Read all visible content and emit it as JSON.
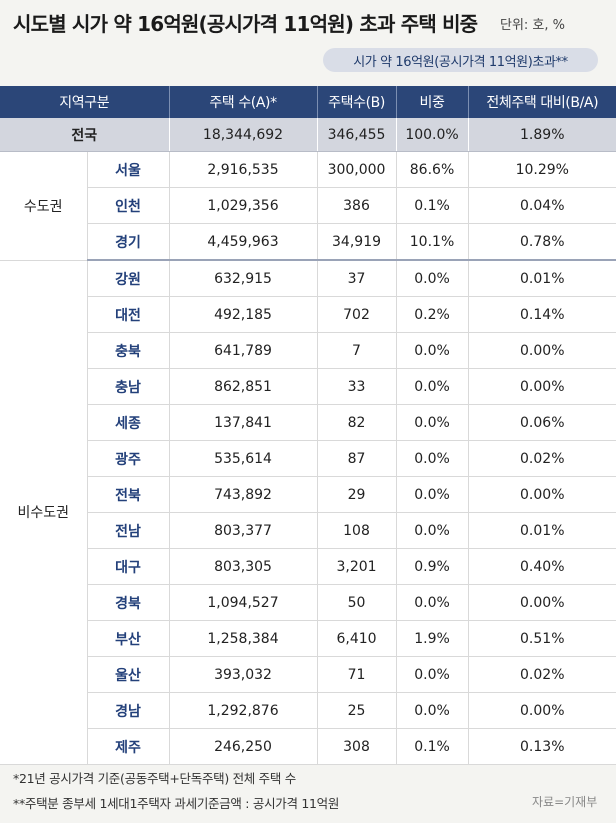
{
  "title": "시도별 시가 약 16억원(공시가격 11억원) 초과 주택 비중",
  "unit": "단위: 호, %",
  "badge": "시가 약 16억원(공시가격 11억원)초과**",
  "columns": [
    "지역구분",
    "주택 수(A)*",
    "주택수(B)",
    "비중",
    "전체주택 대비(B/A)"
  ],
  "national": {
    "name": "전국",
    "a": "18,344,692",
    "b": "346,455",
    "share": "100.0%",
    "ratio": "1.89%"
  },
  "groups": [
    {
      "name": "수도권",
      "rows": [
        {
          "region": "서울",
          "a": "2,916,535",
          "b": "300,000",
          "share": "86.6%",
          "ratio": "10.29%"
        },
        {
          "region": "인천",
          "a": "1,029,356",
          "b": "386",
          "share": "0.1%",
          "ratio": "0.04%"
        },
        {
          "region": "경기",
          "a": "4,459,963",
          "b": "34,919",
          "share": "10.1%",
          "ratio": "0.78%"
        }
      ]
    },
    {
      "name": "비수도권",
      "rows": [
        {
          "region": "강원",
          "a": "632,915",
          "b": "37",
          "share": "0.0%",
          "ratio": "0.01%"
        },
        {
          "region": "대전",
          "a": "492,185",
          "b": "702",
          "share": "0.2%",
          "ratio": "0.14%"
        },
        {
          "region": "충북",
          "a": "641,789",
          "b": "7",
          "share": "0.0%",
          "ratio": "0.00%"
        },
        {
          "region": "충남",
          "a": "862,851",
          "b": "33",
          "share": "0.0%",
          "ratio": "0.00%"
        },
        {
          "region": "세종",
          "a": "137,841",
          "b": "82",
          "share": "0.0%",
          "ratio": "0.06%"
        },
        {
          "region": "광주",
          "a": "535,614",
          "b": "87",
          "share": "0.0%",
          "ratio": "0.02%"
        },
        {
          "region": "전북",
          "a": "743,892",
          "b": "29",
          "share": "0.0%",
          "ratio": "0.00%"
        },
        {
          "region": "전남",
          "a": "803,377",
          "b": "108",
          "share": "0.0%",
          "ratio": "0.01%"
        },
        {
          "region": "대구",
          "a": "803,305",
          "b": "3,201",
          "share": "0.9%",
          "ratio": "0.40%"
        },
        {
          "region": "경북",
          "a": "1,094,527",
          "b": "50",
          "share": "0.0%",
          "ratio": "0.00%"
        },
        {
          "region": "부산",
          "a": "1,258,384",
          "b": "6,410",
          "share": "1.9%",
          "ratio": "0.51%"
        },
        {
          "region": "울산",
          "a": "393,032",
          "b": "71",
          "share": "0.0%",
          "ratio": "0.02%"
        },
        {
          "region": "경남",
          "a": "1,292,876",
          "b": "25",
          "share": "0.0%",
          "ratio": "0.00%"
        },
        {
          "region": "제주",
          "a": "246,250",
          "b": "308",
          "share": "0.1%",
          "ratio": "0.13%"
        }
      ]
    }
  ],
  "footnotes": [
    "*21년 공시가격 기준(공동주택+단독주택) 전체 주택 수",
    "**주택분 종부세 1세대1주택자 과세기준금액 : 공시가격 11억원"
  ],
  "source": "자료=기재부"
}
